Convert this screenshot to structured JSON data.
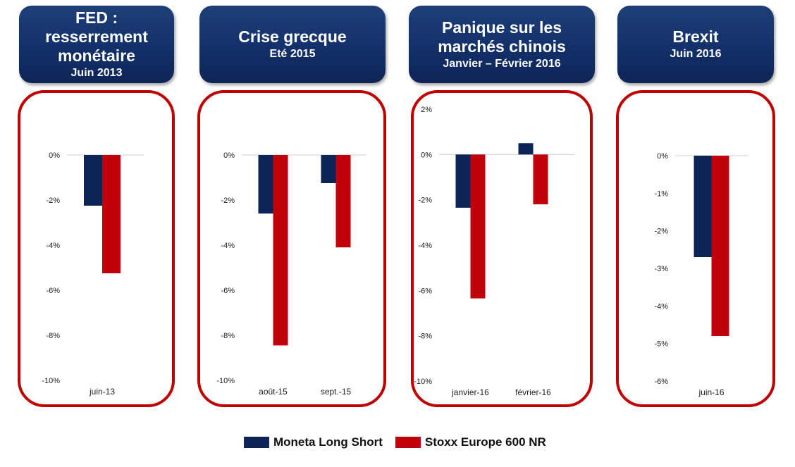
{
  "colors": {
    "moneta": "#0d2458",
    "stoxx": "#c0000a",
    "frame": "#c00000",
    "header": "#13306a"
  },
  "headers": [
    {
      "title": "FED :\nresserrement\nmonétaire",
      "subtitle": "Juin 2013"
    },
    {
      "title": "Crise grecque",
      "subtitle": "Eté 2015"
    },
    {
      "title": "Panique sur les\nmarchés chinois",
      "subtitle": "Janvier – Février 2016"
    },
    {
      "title": "Brexit",
      "subtitle": "Juin 2016"
    }
  ],
  "legend": [
    {
      "label": "Moneta Long Short",
      "color": "#0d2458"
    },
    {
      "label": "Stoxx Europe 600 NR",
      "color": "#c0000a"
    }
  ],
  "chart_data": [
    {
      "type": "bar",
      "categories": [
        "juin-13"
      ],
      "series": [
        {
          "name": "Moneta Long Short",
          "values": [
            -2.25
          ]
        },
        {
          "name": "Stoxx Europe 600 NR",
          "values": [
            -5.25
          ]
        }
      ],
      "ylim": [
        -10,
        0
      ],
      "yticks": [
        0,
        -2,
        -4,
        -6,
        -8,
        -10
      ],
      "ytick_labels": [
        "0%",
        "-2%",
        "-4%",
        "-6%",
        "-8%",
        "-10%"
      ]
    },
    {
      "type": "bar",
      "categories": [
        "août-15",
        "sept.-15"
      ],
      "series": [
        {
          "name": "Moneta Long Short",
          "values": [
            -2.6,
            -1.25
          ]
        },
        {
          "name": "Stoxx Europe 600 NR",
          "values": [
            -8.45,
            -4.1
          ]
        }
      ],
      "ylim": [
        -10,
        0
      ],
      "yticks": [
        0,
        -2,
        -4,
        -6,
        -8,
        -10
      ],
      "ytick_labels": [
        "0%",
        "-2%",
        "-4%",
        "-6%",
        "-8%",
        "-10%"
      ]
    },
    {
      "type": "bar",
      "categories": [
        "janvier-16",
        "février-16"
      ],
      "series": [
        {
          "name": "Moneta Long Short",
          "values": [
            -2.35,
            0.5
          ]
        },
        {
          "name": "Stoxx Europe 600 NR",
          "values": [
            -6.35,
            -2.2
          ]
        }
      ],
      "ylim": [
        -10,
        2
      ],
      "yticks": [
        2,
        0,
        -2,
        -4,
        -6,
        -8,
        -10
      ],
      "ytick_labels": [
        "2%",
        "0%",
        "-2%",
        "-4%",
        "-6%",
        "-8%",
        "-10%"
      ]
    },
    {
      "type": "bar",
      "categories": [
        "juin-16"
      ],
      "series": [
        {
          "name": "Moneta Long Short",
          "values": [
            -2.7
          ]
        },
        {
          "name": "Stoxx Europe 600 NR",
          "values": [
            -4.8
          ]
        }
      ],
      "ylim": [
        -6,
        0
      ],
      "yticks": [
        0,
        -1,
        -2,
        -3,
        -4,
        -5,
        -6
      ],
      "ytick_labels": [
        "0%",
        "-1%",
        "-2%",
        "-3%",
        "-4%",
        "-5%",
        "-6%"
      ]
    }
  ]
}
